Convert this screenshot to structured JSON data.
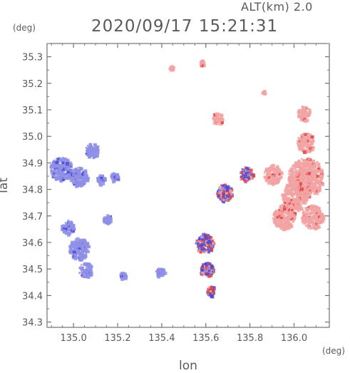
{
  "header": {
    "alt_label": "ALT(km) 2.0",
    "datetime": "2020/09/17 15:21:31"
  },
  "axes": {
    "x_unit": "(deg)",
    "y_unit": "(deg)",
    "xlabel": "lon",
    "ylabel": "lat",
    "x_range": [
      134.88,
      136.16
    ],
    "y_range": [
      34.28,
      35.35
    ],
    "x_ticks": [
      135.0,
      135.2,
      135.4,
      135.6,
      135.8,
      136.0
    ],
    "x_tick_labels": [
      "135.0",
      "135.2",
      "135.4",
      "135.6",
      "135.8",
      "136.0"
    ],
    "y_ticks": [
      34.3,
      34.4,
      34.5,
      34.6,
      34.7,
      34.8,
      34.9,
      35.0,
      35.1,
      35.2,
      35.3
    ],
    "y_tick_labels": [
      "34.3",
      "34.4",
      "34.5",
      "34.6",
      "34.7",
      "34.8",
      "34.9",
      "35.0",
      "35.1",
      "35.2",
      "35.3"
    ]
  },
  "colors": {
    "approaching": "#8f8fe6",
    "receding": "#f2a3a3",
    "strong_blue": "#4a4ad8",
    "strong_red": "#e04848"
  },
  "echo_regions": [
    {
      "kind": "approaching",
      "lon": 134.94,
      "lat": 34.88,
      "r": 0.05
    },
    {
      "kind": "approaching",
      "lon": 135.02,
      "lat": 34.85,
      "r": 0.04
    },
    {
      "kind": "approaching",
      "lon": 135.08,
      "lat": 34.95,
      "r": 0.03
    },
    {
      "kind": "approaching",
      "lon": 135.12,
      "lat": 34.84,
      "r": 0.02
    },
    {
      "kind": "approaching",
      "lon": 135.18,
      "lat": 34.85,
      "r": 0.02
    },
    {
      "kind": "approaching",
      "lon": 135.02,
      "lat": 34.58,
      "r": 0.045
    },
    {
      "kind": "approaching",
      "lon": 135.05,
      "lat": 34.5,
      "r": 0.03
    },
    {
      "kind": "approaching",
      "lon": 134.97,
      "lat": 34.66,
      "r": 0.03
    },
    {
      "kind": "approaching",
      "lon": 135.15,
      "lat": 34.69,
      "r": 0.02
    },
    {
      "kind": "approaching",
      "lon": 135.39,
      "lat": 34.49,
      "r": 0.02
    },
    {
      "kind": "approaching",
      "lon": 135.22,
      "lat": 34.48,
      "r": 0.015
    },
    {
      "kind": "receding",
      "lon": 136.05,
      "lat": 34.85,
      "r": 0.08
    },
    {
      "kind": "receding",
      "lon": 136.0,
      "lat": 34.78,
      "r": 0.06
    },
    {
      "kind": "receding",
      "lon": 135.95,
      "lat": 34.7,
      "r": 0.05
    },
    {
      "kind": "receding",
      "lon": 136.08,
      "lat": 34.7,
      "r": 0.05
    },
    {
      "kind": "receding",
      "lon": 135.9,
      "lat": 34.86,
      "r": 0.04
    },
    {
      "kind": "receding",
      "lon": 136.05,
      "lat": 34.98,
      "r": 0.04
    },
    {
      "kind": "receding",
      "lon": 136.04,
      "lat": 35.09,
      "r": 0.03
    },
    {
      "kind": "receding",
      "lon": 135.65,
      "lat": 35.07,
      "r": 0.025
    },
    {
      "kind": "receding",
      "lon": 135.58,
      "lat": 35.28,
      "r": 0.012
    },
    {
      "kind": "receding",
      "lon": 135.44,
      "lat": 35.26,
      "r": 0.01
    },
    {
      "kind": "receding",
      "lon": 135.86,
      "lat": 35.17,
      "r": 0.008
    },
    {
      "kind": "mixed",
      "lon": 135.59,
      "lat": 34.6,
      "r": 0.04
    },
    {
      "kind": "mixed",
      "lon": 135.6,
      "lat": 34.5,
      "r": 0.03
    },
    {
      "kind": "mixed",
      "lon": 135.62,
      "lat": 34.42,
      "r": 0.02
    },
    {
      "kind": "mixed",
      "lon": 135.68,
      "lat": 34.79,
      "r": 0.035
    },
    {
      "kind": "mixed",
      "lon": 135.78,
      "lat": 34.86,
      "r": 0.03
    }
  ]
}
